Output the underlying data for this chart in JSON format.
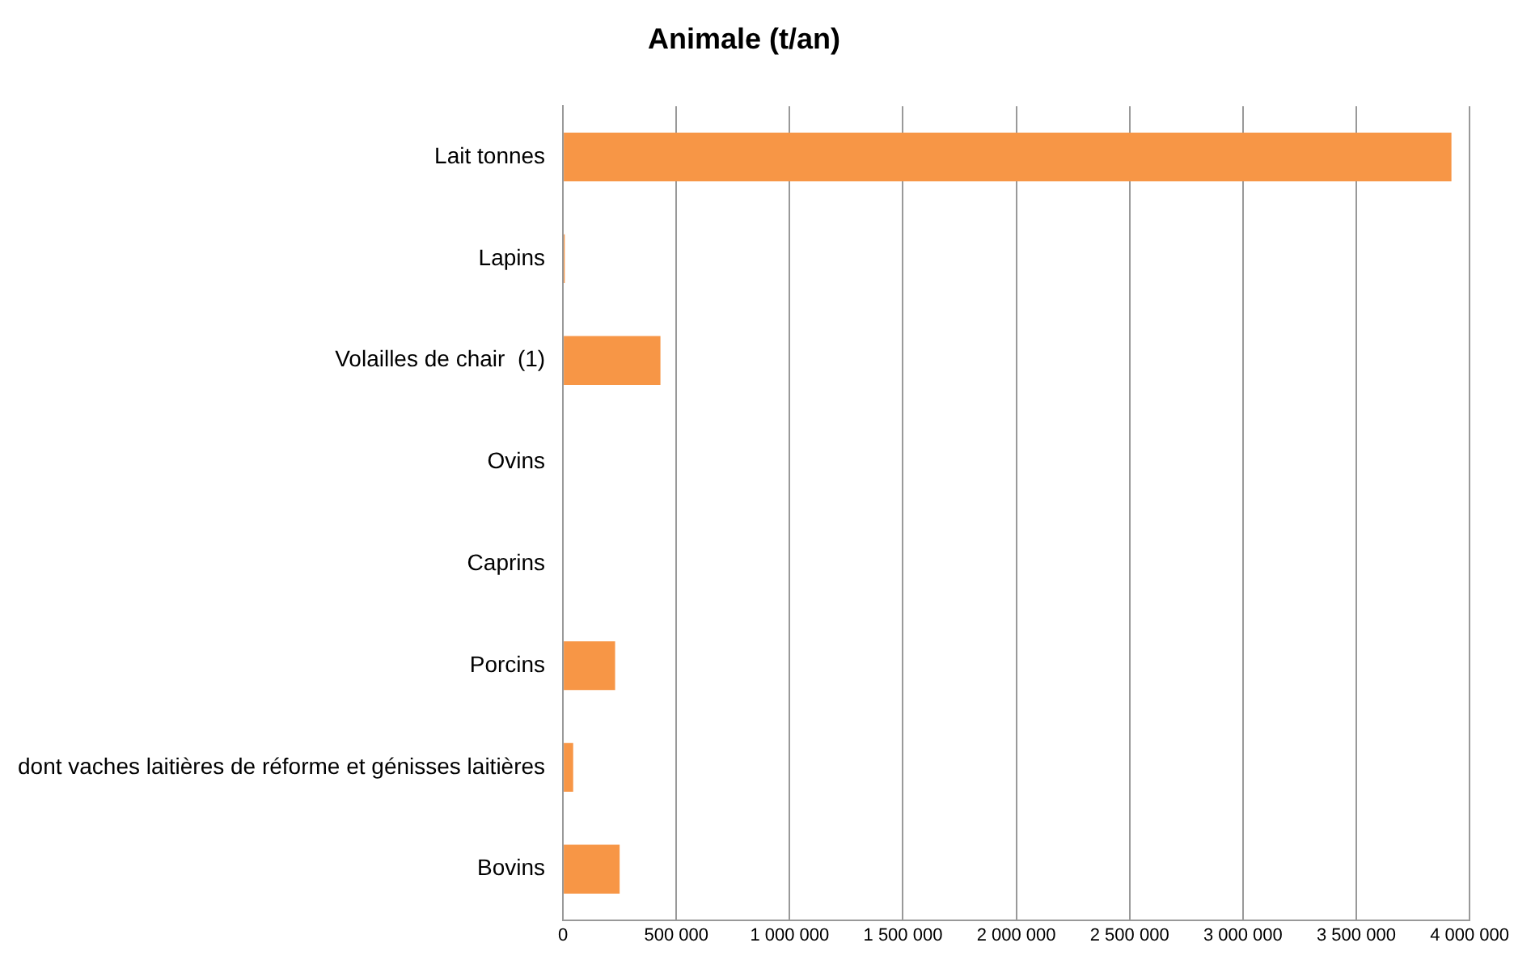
{
  "chart_data": {
    "type": "bar",
    "orientation": "horizontal",
    "title": "Animale (t/an)",
    "categories": [
      "Lait tonnes",
      "Lapins",
      "Volailles de chair  (1)",
      "Ovins",
      "Caprins",
      "Porcins",
      "dont vaches laitières de réforme et génisses laitières",
      "Bovins"
    ],
    "values": [
      3920000,
      8000,
      430000,
      null,
      null,
      230000,
      45000,
      250000
    ],
    "color": "#f79646",
    "xlim": [
      0,
      4000000
    ],
    "xticks": [
      0,
      {
        "value": 500000,
        "label": "500 000"
      },
      {
        "value": 1000000,
        "label": "1 000 000"
      },
      {
        "value": 1500000,
        "label": "1 500 000"
      },
      {
        "value": 2000000,
        "label": "2 000 000"
      },
      {
        "value": 2500000,
        "label": "2 500 000"
      },
      {
        "value": 3000000,
        "label": "3 000 000"
      },
      {
        "value": 3500000,
        "label": "3 500 000"
      },
      {
        "value": 4000000,
        "label": "4 000 000"
      }
    ],
    "grid": "x",
    "legend": false
  }
}
